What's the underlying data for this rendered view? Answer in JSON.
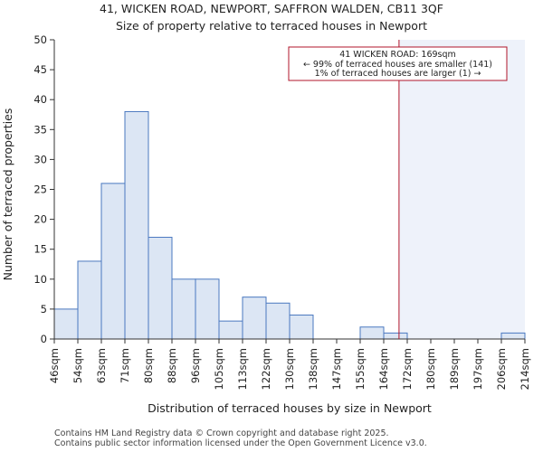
{
  "chart_data": {
    "type": "bar",
    "title": "41, WICKEN ROAD, NEWPORT, SAFFRON WALDEN, CB11 3QF",
    "subtitle": "Size of property relative to terraced houses in Newport",
    "xlabel": "Distribution of terraced houses by size in Newport",
    "ylabel": "Number of terraced properties",
    "bin_edges_labels": [
      "46sqm",
      "54sqm",
      "63sqm",
      "71sqm",
      "80sqm",
      "88sqm",
      "96sqm",
      "105sqm",
      "113sqm",
      "122sqm",
      "130sqm",
      "138sqm",
      "147sqm",
      "155sqm",
      "164sqm",
      "172sqm",
      "180sqm",
      "189sqm",
      "197sqm",
      "206sqm",
      "214sqm"
    ],
    "values": [
      5,
      13,
      26,
      38,
      17,
      10,
      10,
      3,
      7,
      6,
      4,
      0,
      0,
      2,
      1,
      0,
      0,
      0,
      0,
      1
    ],
    "ylim": [
      0,
      50
    ],
    "yticks": [
      0,
      5,
      10,
      15,
      20,
      25,
      30,
      35,
      40,
      45,
      50
    ],
    "marker_position_bins": 14.65,
    "annotation": {
      "line1": "41 WICKEN ROAD: 169sqm",
      "line2": "← 99% of terraced houses are smaller (141)",
      "line3": "1% of terraced houses are larger (1) →"
    },
    "colors": {
      "bar_fill": "#dce6f4",
      "bar_edge": "#4a78bf",
      "marker_line": "#b0152b",
      "shade": "#eef2fa",
      "axis": "#333333"
    }
  },
  "footer": {
    "line1": "Contains HM Land Registry data © Crown copyright and database right 2025.",
    "line2": "Contains public sector information licensed under the Open Government Licence v3.0."
  }
}
